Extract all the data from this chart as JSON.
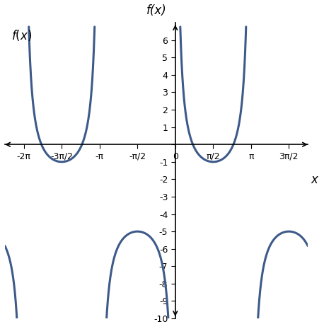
{
  "title": "f(x)",
  "func": "2*csc(x) - 3",
  "amplitude": 2,
  "vertical_shift": -3,
  "period": 6.283185307179586,
  "x_min": -7.0685834705770345,
  "x_max": 5.497787143782138,
  "y_min": -10,
  "y_max": 7,
  "x_ticks": [
    -6.283185307179586,
    -4.71238898038469,
    -3.141592653589793,
    -1.5707963267948966,
    0,
    1.5707963267948966,
    3.141592653589793,
    4.71238898038469
  ],
  "x_tick_labels": [
    "-2π",
    "-3π/2",
    "-π",
    "-π/2",
    "0",
    "π/2",
    "π",
    "3π/2"
  ],
  "y_ticks": [
    -10,
    -9,
    -8,
    -7,
    -6,
    -5,
    -4,
    -3,
    -2,
    -1,
    0,
    1,
    2,
    3,
    4,
    5,
    6
  ],
  "line_color": "#3d5a8a",
  "line_width": 2.2,
  "bg_color": "#ffffff",
  "clip_ymin": -10.3,
  "clip_ymax": 6.8
}
